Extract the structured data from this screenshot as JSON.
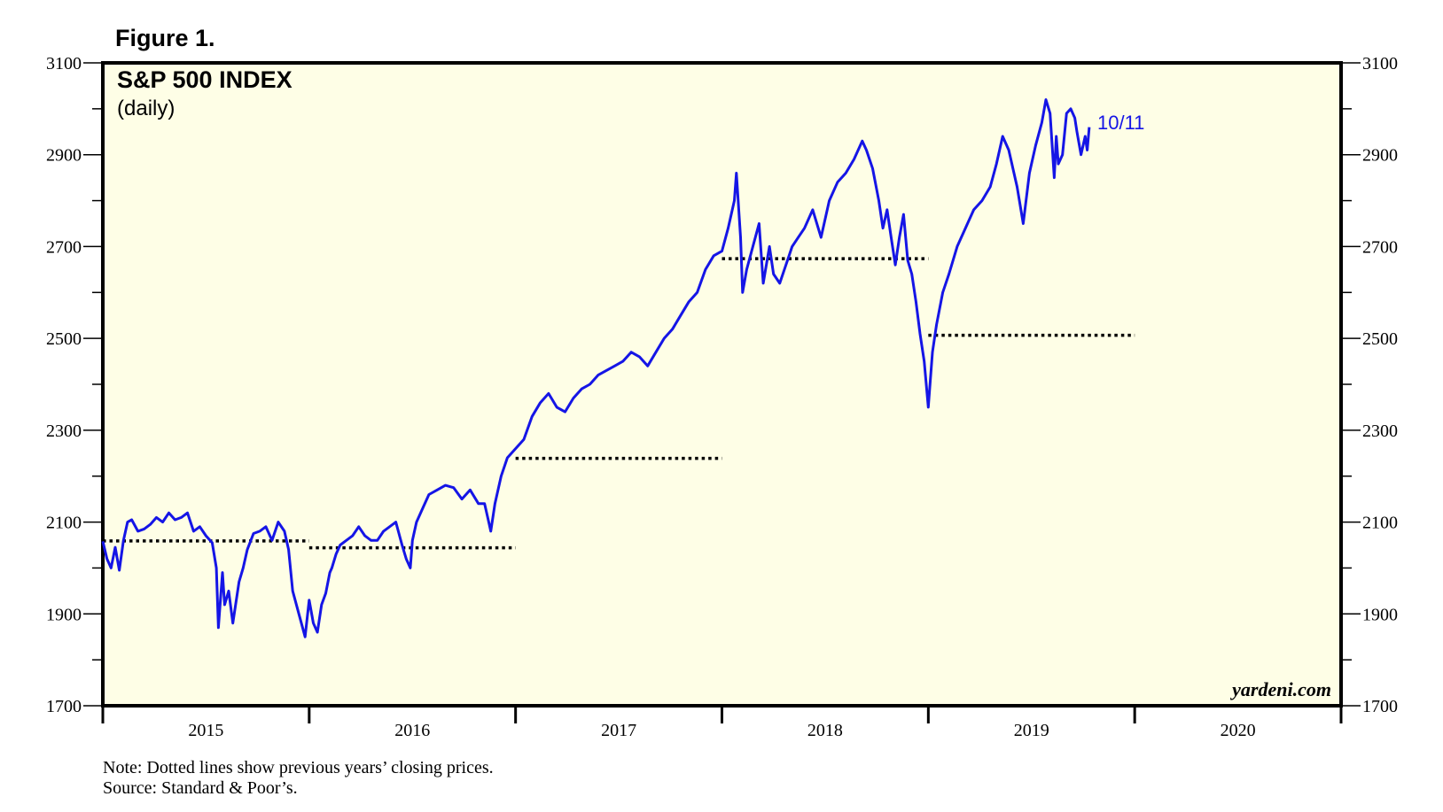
{
  "figure_label": "Figure 1.",
  "colors": {
    "plot_background": "#fefee6",
    "line": "#1515e6",
    "dotted": "#000000",
    "frame": "#000000"
  },
  "chart_data": {
    "type": "line",
    "title": "S&P 500 INDEX",
    "subtitle": "(daily)",
    "ylim": [
      1700,
      3100
    ],
    "y_ticks": [
      "1700",
      "1900",
      "2100",
      "2300",
      "2500",
      "2700",
      "2900",
      "3100"
    ],
    "x_range": [
      2015.0,
      2021.0
    ],
    "x_tick_labels": [
      {
        "label": "2015",
        "x": 2015.5
      },
      {
        "label": "2016",
        "x": 2016.5
      },
      {
        "label": "2017",
        "x": 2017.5
      },
      {
        "label": "2018",
        "x": 2018.5
      },
      {
        "label": "2019",
        "x": 2019.5
      },
      {
        "label": "2020",
        "x": 2020.5
      }
    ],
    "end_label": "10/11",
    "watermark": "yardeni.com",
    "series": [
      {
        "x": [
          2015.0,
          2015.02,
          2015.04,
          2015.06,
          2015.08,
          2015.1,
          2015.12,
          2015.14,
          2015.17,
          2015.2,
          2015.23,
          2015.26,
          2015.29,
          2015.32,
          2015.35,
          2015.38,
          2015.41,
          2015.44,
          2015.47,
          2015.5,
          2015.53,
          2015.55,
          2015.56,
          2015.58,
          2015.59,
          2015.61,
          2015.63,
          2015.66,
          2015.68,
          2015.7,
          2015.73,
          2015.76,
          2015.79,
          2015.82,
          2015.85,
          2015.88,
          2015.9,
          2015.92,
          2015.95,
          2015.98,
          2016.0,
          2016.02,
          2016.04,
          2016.06,
          2016.08,
          2016.1,
          2016.11,
          2016.13,
          2016.15,
          2016.18,
          2016.21,
          2016.24,
          2016.27,
          2016.3,
          2016.33,
          2016.36,
          2016.39,
          2016.42,
          2016.45,
          2016.47,
          2016.49,
          2016.5,
          2016.52,
          2016.55,
          2016.58,
          2016.62,
          2016.66,
          2016.7,
          2016.74,
          2016.78,
          2016.82,
          2016.85,
          2016.87,
          2016.88,
          2016.9,
          2016.93,
          2016.96,
          2017.0,
          2017.04,
          2017.08,
          2017.12,
          2017.16,
          2017.2,
          2017.24,
          2017.28,
          2017.32,
          2017.36,
          2017.4,
          2017.44,
          2017.48,
          2017.52,
          2017.56,
          2017.6,
          2017.64,
          2017.68,
          2017.72,
          2017.76,
          2017.8,
          2017.84,
          2017.88,
          2017.92,
          2017.96,
          2018.0,
          2018.03,
          2018.06,
          2018.07,
          2018.09,
          2018.1,
          2018.12,
          2018.15,
          2018.18,
          2018.2,
          2018.23,
          2018.25,
          2018.28,
          2018.31,
          2018.34,
          2018.37,
          2018.4,
          2018.44,
          2018.48,
          2018.52,
          2018.56,
          2018.6,
          2018.64,
          2018.68,
          2018.7,
          2018.73,
          2018.76,
          2018.78,
          2018.8,
          2018.82,
          2018.84,
          2018.86,
          2018.88,
          2018.9,
          2018.92,
          2018.94,
          2018.96,
          2018.98,
          2019.0,
          2019.02,
          2019.04,
          2019.07,
          2019.1,
          2019.14,
          2019.18,
          2019.22,
          2019.26,
          2019.3,
          2019.33,
          2019.36,
          2019.39,
          2019.41,
          2019.43,
          2019.46,
          2019.49,
          2019.52,
          2019.55,
          2019.57,
          2019.59,
          2019.61,
          2019.62,
          2019.63,
          2019.65,
          2019.67,
          2019.69,
          2019.71,
          2019.72,
          2019.74,
          2019.76,
          2019.77,
          2019.78
        ],
        "y": [
          2058,
          2020,
          2000,
          2045,
          1995,
          2060,
          2100,
          2105,
          2080,
          2085,
          2095,
          2110,
          2100,
          2120,
          2105,
          2110,
          2120,
          2080,
          2090,
          2070,
          2055,
          2000,
          1870,
          1990,
          1920,
          1950,
          1880,
          1970,
          2000,
          2040,
          2075,
          2080,
          2090,
          2060,
          2100,
          2080,
          2040,
          1950,
          1900,
          1850,
          1930,
          1880,
          1860,
          1920,
          1945,
          1990,
          2000,
          2030,
          2050,
          2060,
          2070,
          2090,
          2070,
          2060,
          2060,
          2080,
          2090,
          2100,
          2050,
          2020,
          2000,
          2060,
          2100,
          2130,
          2160,
          2170,
          2180,
          2175,
          2150,
          2170,
          2140,
          2140,
          2100,
          2080,
          2140,
          2200,
          2240,
          2260,
          2280,
          2330,
          2360,
          2380,
          2350,
          2340,
          2370,
          2390,
          2400,
          2420,
          2430,
          2440,
          2450,
          2470,
          2460,
          2440,
          2470,
          2500,
          2520,
          2550,
          2580,
          2600,
          2650,
          2680,
          2690,
          2740,
          2800,
          2860,
          2720,
          2600,
          2650,
          2700,
          2750,
          2620,
          2700,
          2640,
          2620,
          2660,
          2700,
          2720,
          2740,
          2780,
          2720,
          2800,
          2840,
          2860,
          2890,
          2930,
          2910,
          2870,
          2800,
          2740,
          2780,
          2720,
          2660,
          2720,
          2770,
          2670,
          2640,
          2580,
          2510,
          2450,
          2350,
          2470,
          2530,
          2600,
          2640,
          2700,
          2740,
          2780,
          2800,
          2830,
          2880,
          2940,
          2910,
          2870,
          2830,
          2750,
          2860,
          2920,
          2970,
          3020,
          2990,
          2850,
          2940,
          2880,
          2900,
          2990,
          3000,
          2980,
          2950,
          2900,
          2940,
          2910,
          2960
        ],
        "color": "#1515e6"
      }
    ],
    "reference_lines": [
      {
        "y": 2058.9,
        "x_start": 2015.0,
        "x_end": 2016.0
      },
      {
        "y": 2043.9,
        "x_start": 2016.0,
        "x_end": 2017.0
      },
      {
        "y": 2238.8,
        "x_start": 2017.0,
        "x_end": 2018.0
      },
      {
        "y": 2673.6,
        "x_start": 2018.0,
        "x_end": 2019.0
      },
      {
        "y": 2506.9,
        "x_start": 2019.0,
        "x_end": 2020.0
      }
    ]
  },
  "notes": {
    "line1": "Note: Dotted lines show previous years’ closing prices.",
    "line2": "Source: Standard & Poor’s."
  }
}
